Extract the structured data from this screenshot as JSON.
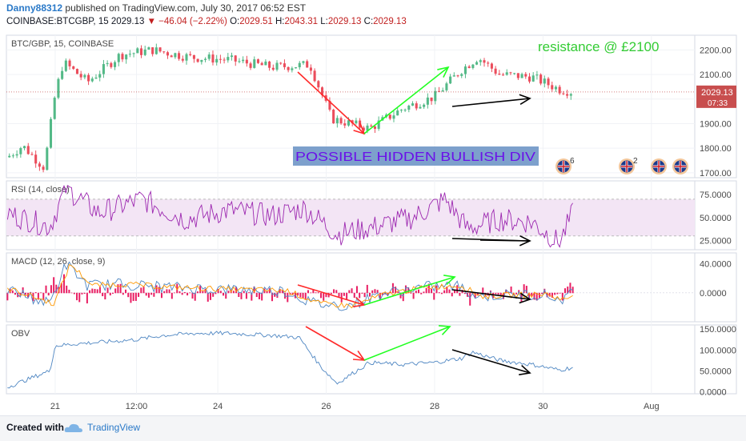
{
  "header": {
    "publisher": "Danny88312",
    "published_text": "published on TradingView.com, July 30, 2017 06:52 EST",
    "symbol_line": "COINBASE:BTCGBP, 15",
    "last_price": "2029.13",
    "change": "▼ −46.04 (−2.22%)",
    "ohlc": {
      "o_label": "O:",
      "o": "2029.51",
      "h_label": "H:",
      "h": "2043.31",
      "l_label": "L:",
      "l": "2029.13",
      "c_label": "C:",
      "c": "2029.13"
    }
  },
  "annotations": {
    "resistance": "resistance @ £2100",
    "divergence": "POSSIBLE HIDDEN BULLISH DIV",
    "event_counts": [
      "6",
      "2"
    ]
  },
  "footer": {
    "created_with": "Created with",
    "brand": "TradingView"
  },
  "colors": {
    "up": "#53b987",
    "down": "#eb4d5c",
    "red_arrow": "#ff2a2a",
    "green_arrow": "#22ff22",
    "black_arrow": "#000000",
    "rsi_line": "#9c27b0",
    "rsi_band": "#f3e5f5",
    "obv_line": "#4e86c2",
    "macd_hist": "#e91e63",
    "macd_line": "#4e86c2",
    "signal_line": "#ff9800",
    "resistance_text": "#33cc33",
    "label_bg": "#6f96c7",
    "label_text": "#6b11e8",
    "price_tag": "#c84e4e"
  },
  "chart_data": [
    {
      "type": "candlestick",
      "pane": "price",
      "title": "BTC/GBP, 15, COINBASE",
      "y_ticks": [
        1700,
        1800,
        1900,
        2000,
        2100,
        2200
      ],
      "y_tick_labels": [
        "1700.00",
        "1800.00",
        "1900.00",
        "2000.00",
        "2100.00",
        "2200.00"
      ],
      "ylim": [
        1680,
        2260
      ],
      "last_price": 2029.13,
      "last_price_label": "2029.13",
      "countdown": "07:33",
      "x_tick_labels": [
        "21",
        "12:00",
        "24",
        "26",
        "28",
        "30",
        "Aug"
      ],
      "x_ticks_days": [
        21,
        22.5,
        24,
        26,
        28,
        30,
        32
      ],
      "x_range_days": [
        20.1,
        32.8
      ],
      "data_end_day": 30.55,
      "series_key_points": {
        "x": [
          20.1,
          20.4,
          20.8,
          21.0,
          21.15,
          21.6,
          22.2,
          22.8,
          23.5,
          24.2,
          25.0,
          25.7,
          26.1,
          26.8,
          27.4,
          28.0,
          28.5,
          28.8,
          29.2,
          29.8,
          30.3,
          30.55
        ],
        "y": [
          1760,
          1810,
          1720,
          2020,
          2150,
          2070,
          2180,
          2200,
          2170,
          2160,
          2130,
          2140,
          1920,
          1880,
          1960,
          2010,
          2120,
          2170,
          2100,
          2090,
          2040,
          2029.13
        ]
      }
    },
    {
      "type": "line",
      "pane": "rsi",
      "title": "RSI (14, close)",
      "y_ticks": [
        25,
        50,
        75
      ],
      "y_tick_labels": [
        "25.0000",
        "50.0000",
        "75.0000"
      ],
      "ylim": [
        15,
        90
      ],
      "band": [
        30,
        70
      ],
      "series": [
        {
          "x": [
            20.1,
            20.9,
            21.2,
            21.8,
            22.6,
            23.4,
            24.2,
            25.0,
            25.6,
            26.2,
            26.9,
            27.6,
            28.2,
            28.6,
            29.2,
            29.8,
            30.3,
            30.55
          ],
          "y": [
            55,
            40,
            82,
            55,
            70,
            48,
            58,
            52,
            60,
            32,
            40,
            50,
            70,
            38,
            48,
            45,
            22,
            55
          ]
        }
      ]
    },
    {
      "type": "line",
      "pane": "macd",
      "title": "MACD (12, 26, close, 9)",
      "y_ticks": [
        0,
        40
      ],
      "y_tick_labels": [
        "0.0000",
        "40.0000"
      ],
      "ylim": [
        -40,
        55
      ],
      "series": [
        {
          "x": [
            20.1,
            20.9,
            21.2,
            21.6,
            22.2,
            23.0,
            24.0,
            25.2,
            25.8,
            26.4,
            27.0,
            27.8,
            28.4,
            28.8,
            29.4,
            30.0,
            30.3,
            30.55
          ],
          "y": [
            5,
            -15,
            40,
            10,
            12,
            8,
            5,
            3,
            -15,
            -18,
            -2,
            8,
            10,
            -5,
            -3,
            -2,
            -10,
            0
          ]
        }
      ]
    },
    {
      "type": "line",
      "pane": "obv",
      "title": "OBV",
      "y_ticks": [
        0,
        50,
        100,
        150
      ],
      "y_tick_labels": [
        "0.0000",
        "50.0000",
        "100.0000",
        "150.0000"
      ],
      "ylim": [
        -5,
        160
      ],
      "series": [
        {
          "x": [
            20.1,
            20.5,
            20.9,
            21.0,
            21.4,
            22.0,
            22.5,
            23.0,
            23.6,
            24.2,
            25.0,
            25.5,
            25.9,
            26.2,
            26.8,
            27.4,
            28.0,
            28.5,
            28.7,
            29.2,
            29.8,
            30.3,
            30.55
          ],
          "y": [
            10,
            30,
            50,
            110,
            115,
            120,
            125,
            135,
            140,
            140,
            135,
            130,
            60,
            20,
            70,
            65,
            70,
            80,
            95,
            75,
            65,
            52,
            58
          ]
        }
      ]
    }
  ]
}
